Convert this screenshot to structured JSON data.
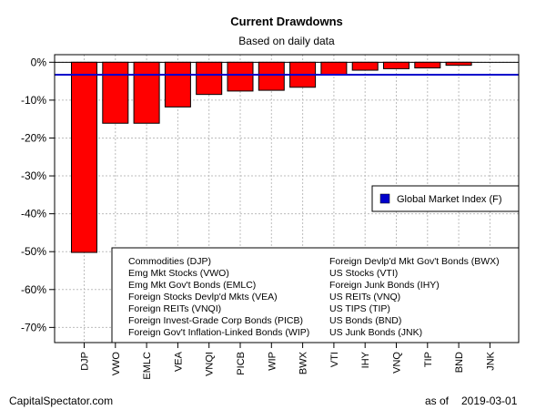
{
  "chart_data": {
    "type": "bar",
    "title": "Current Drawdowns",
    "subtitle": "Based on daily data",
    "categories": [
      "DJP",
      "VWO",
      "EMLC",
      "VEA",
      "VNQI",
      "PICB",
      "WIP",
      "BWX",
      "VTI",
      "IHY",
      "VNQ",
      "TIP",
      "BND",
      "JNK"
    ],
    "values": [
      -50.2,
      -16.1,
      -16.1,
      -11.8,
      -8.5,
      -7.6,
      -7.4,
      -6.6,
      -3.3,
      -2.1,
      -1.7,
      -1.5,
      -0.8,
      0.0
    ],
    "reference_line": {
      "name": "Global Market Index (F)",
      "value": -3.3,
      "color": "#0000cc"
    },
    "ylim": [
      -74,
      2
    ],
    "yticks": [
      0,
      -10,
      -20,
      -30,
      -40,
      -50,
      -60,
      -70
    ],
    "ytick_labels": [
      "0%",
      "-10%",
      "-20%",
      "-30%",
      "-40%",
      "-50%",
      "-60%",
      "-70%"
    ],
    "grid": true,
    "bar_color": "#ff0000",
    "legend": {
      "placement": "right",
      "label": "Global Market Index (F)",
      "color": "#0000cc"
    },
    "key_left": [
      "Commodities (DJP)",
      "Emg Mkt Stocks (VWO)",
      "Emg Mkt Gov't Bonds (EMLC)",
      "Foreign Stocks Devlp'd Mkts (VEA)",
      "Foreign REITs (VNQI)",
      "Foreign Invest-Grade Corp Bonds (PICB)",
      "Foreign Gov't Inflation-Linked Bonds (WIP)"
    ],
    "key_right": [
      "Foreign Devlp'd Mkt Gov't Bonds (BWX)",
      "US Stocks (VTI)",
      "Foreign Junk Bonds (IHY)",
      "US REITs (VNQ)",
      "US TIPS (TIP)",
      "US Bonds (BND)",
      "US Junk Bonds (JNK)"
    ]
  },
  "footer": {
    "source": "CapitalSpectator.com",
    "as_of_label": "as of",
    "as_of_date": "2019-03-01"
  }
}
